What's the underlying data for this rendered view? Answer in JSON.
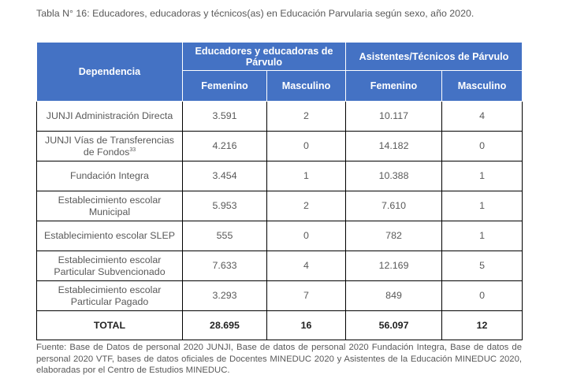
{
  "caption": "Tabla N° 16: Educadores, educadoras y técnicos(as) en Educación Parvularia según sexo, año 2020.",
  "header": {
    "dependencia": "Dependencia",
    "group1": "Educadores y educadoras de Párvulo",
    "group2": "Asistentes/Técnicos de Párvulo",
    "femenino": "Femenino",
    "masculino": "Masculino"
  },
  "rows": [
    {
      "dep": "JUNJI Administración Directa",
      "f1": "3.591",
      "m1": "2",
      "f2": "10.117",
      "m2": "4"
    },
    {
      "dep": "JUNJI Vías de Transferencias de Fondos",
      "dep_note": "33",
      "f1": "4.216",
      "m1": "0",
      "f2": "14.182",
      "m2": "0"
    },
    {
      "dep": "Fundación Integra",
      "f1": "3.454",
      "m1": "1",
      "f2": "10.388",
      "m2": "1"
    },
    {
      "dep": "Establecimiento escolar Municipal",
      "f1": "5.953",
      "m1": "2",
      "f2": "7.610",
      "m2": "1"
    },
    {
      "dep": "Establecimiento escolar SLEP",
      "f1": "555",
      "m1": "0",
      "f2": "782",
      "m2": "1"
    },
    {
      "dep": "Establecimiento escolar Particular Subvencionado",
      "f1": "7.633",
      "m1": "4",
      "f2": "12.169",
      "m2": "5"
    },
    {
      "dep": "Establecimiento escolar Particular Pagado",
      "f1": "3.293",
      "m1": "7",
      "f2": "849",
      "m2": "0"
    }
  ],
  "total": {
    "dep": "TOTAL",
    "f1": "28.695",
    "m1": "16",
    "f2": "56.097",
    "m2": "12"
  },
  "source": "Fuente: Base de Datos de personal 2020 JUNJI, Base de datos de personal 2020 Fundación Integra, Base de datos de personal 2020 VTF, bases de datos oficiales de Docentes MINEDUC 2020 y Asistentes de la Educación MINEDUC 2020, elaboradas por el Centro de Estudios MINEDUC."
}
